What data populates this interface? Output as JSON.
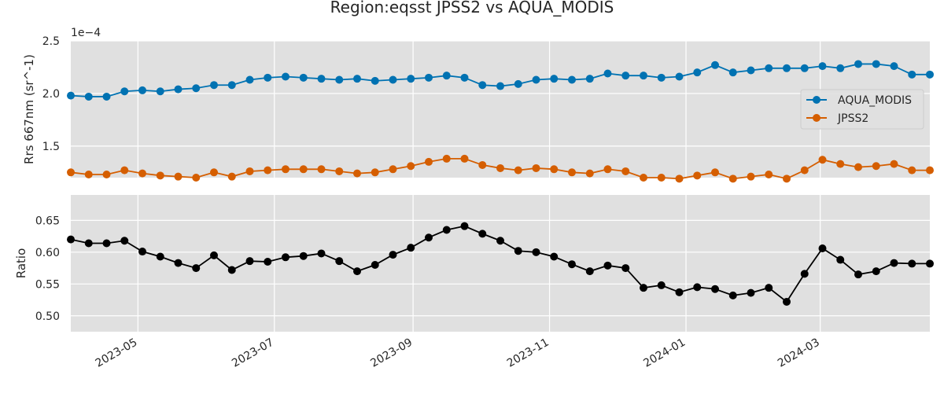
{
  "chart_data": {
    "type": "line",
    "title": "Region:eqsst JPSS2 vs AQUA_MODIS",
    "x_dates": [
      "2023-04-01",
      "2023-04-09",
      "2023-04-17",
      "2023-04-25",
      "2023-05-03",
      "2023-05-11",
      "2023-05-19",
      "2023-05-27",
      "2023-06-04",
      "2023-06-12",
      "2023-06-20",
      "2023-06-28",
      "2023-07-06",
      "2023-07-14",
      "2023-07-22",
      "2023-07-30",
      "2023-08-07",
      "2023-08-15",
      "2023-08-23",
      "2023-08-31",
      "2023-09-08",
      "2023-09-16",
      "2023-09-24",
      "2023-10-02",
      "2023-10-10",
      "2023-10-18",
      "2023-10-26",
      "2023-11-03",
      "2023-11-11",
      "2023-11-19",
      "2023-11-27",
      "2023-12-05",
      "2023-12-13",
      "2023-12-21",
      "2023-12-29",
      "2024-01-06",
      "2024-01-14",
      "2024-01-22",
      "2024-01-30",
      "2024-02-07",
      "2024-02-15",
      "2024-02-23",
      "2024-03-02",
      "2024-03-10",
      "2024-03-18",
      "2024-03-26",
      "2024-04-03",
      "2024-04-11",
      "2024-04-19"
    ],
    "x_ticks": [
      "2023-05",
      "2023-07",
      "2023-09",
      "2023-11",
      "2024-01",
      "2024-03"
    ],
    "panels": [
      {
        "ylabel": "Rrs 667nm (sr^-1)",
        "offset_text": "1e−4",
        "ylim": [
          1.2,
          2.5
        ],
        "yticks": [
          "1.5",
          "2.0",
          "2.5"
        ],
        "ytick_values": [
          1.5,
          2.0,
          2.5
        ],
        "legend_position": "right",
        "series": [
          {
            "name": "AQUA_MODIS",
            "color": "#0072b2",
            "values": [
              1.98,
              1.97,
              1.97,
              2.02,
              2.03,
              2.02,
              2.04,
              2.05,
              2.08,
              2.08,
              2.13,
              2.15,
              2.16,
              2.15,
              2.14,
              2.13,
              2.14,
              2.12,
              2.13,
              2.14,
              2.15,
              2.17,
              2.15,
              2.08,
              2.07,
              2.09,
              2.13,
              2.14,
              2.13,
              2.14,
              2.19,
              2.17,
              2.17,
              2.15,
              2.16,
              2.2,
              2.27,
              2.2,
              2.22,
              2.24,
              2.24,
              2.24,
              2.26,
              2.24,
              2.28,
              2.28,
              2.26,
              2.18,
              2.18
            ]
          },
          {
            "name": "JPSS2",
            "color": "#d55e00",
            "values": [
              1.25,
              1.23,
              1.23,
              1.27,
              1.24,
              1.22,
              1.21,
              1.2,
              1.25,
              1.21,
              1.26,
              1.27,
              1.28,
              1.28,
              1.28,
              1.26,
              1.24,
              1.25,
              1.28,
              1.31,
              1.35,
              1.38,
              1.38,
              1.32,
              1.29,
              1.27,
              1.29,
              1.28,
              1.25,
              1.24,
              1.28,
              1.26,
              1.2,
              1.2,
              1.19,
              1.22,
              1.25,
              1.19,
              1.21,
              1.23,
              1.19,
              1.27,
              1.37,
              1.33,
              1.3,
              1.31,
              1.33,
              1.27,
              1.27
            ]
          }
        ]
      },
      {
        "ylabel": "Ratio",
        "ylim": [
          0.475,
          0.69
        ],
        "yticks": [
          "0.50",
          "0.55",
          "0.60",
          "0.65"
        ],
        "ytick_values": [
          0.5,
          0.55,
          0.6,
          0.65
        ],
        "series": [
          {
            "color": "#000000",
            "values": [
              0.62,
              0.614,
              0.614,
              0.618,
              0.601,
              0.593,
              0.583,
              0.575,
              0.595,
              0.572,
              0.586,
              0.585,
              0.592,
              0.594,
              0.598,
              0.586,
              0.57,
              0.58,
              0.596,
              0.607,
              0.623,
              0.635,
              0.641,
              0.629,
              0.618,
              0.602,
              0.6,
              0.593,
              0.581,
              0.57,
              0.579,
              0.575,
              0.544,
              0.548,
              0.537,
              0.545,
              0.542,
              0.532,
              0.536,
              0.544,
              0.522,
              0.566,
              0.606,
              0.588,
              0.565,
              0.57,
              0.583,
              0.582,
              0.582
            ]
          }
        ]
      }
    ]
  }
}
